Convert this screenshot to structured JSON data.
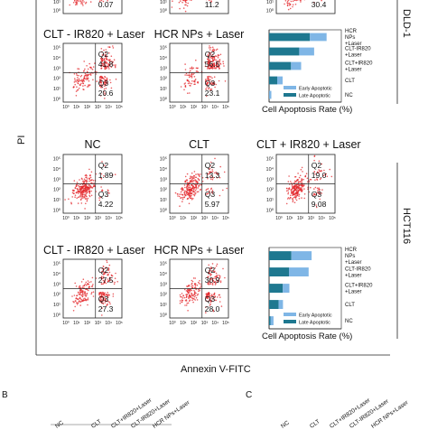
{
  "figure": {
    "y_axis_label": "PI",
    "x_axis_label": "Annexin V-FITC",
    "cell_lines": [
      "DLD-1",
      "HCT116"
    ],
    "panel_letters": [
      "B",
      "C"
    ],
    "bottom_groups": [
      "NC",
      "CLT",
      "CLT+IR820+Laser",
      "CLT-IR820+Laser",
      "HCR NPs+Laser"
    ],
    "colors": {
      "dots": "#e3262a",
      "early": "#7fb6e6",
      "late": "#1e7890",
      "grid": "#222222"
    }
  },
  "chart_data": [
    {
      "type": "scatter",
      "cell_line": "DLD-1",
      "panels": [
        {
          "title": "CLT - IR820 + Laser",
          "q2": "41.8",
          "q3": "20.6"
        },
        {
          "title": "HCR NPs + Laser",
          "q2": "56.5",
          "q3": "23.1"
        }
      ],
      "partial_values": [
        "0.07",
        "11.2",
        "30.4"
      ],
      "y_ticks": [
        "10⁵",
        "10⁴",
        "10³",
        "10²",
        "10¹",
        "10⁰"
      ],
      "x_ticks": [
        "10⁰",
        "10¹",
        "10²",
        "10³",
        "10⁴",
        "10⁵"
      ]
    },
    {
      "type": "scatter",
      "cell_line": "HCT116",
      "panels": [
        {
          "title": "NC",
          "q2": "1.89",
          "q3": "4.22"
        },
        {
          "title": "CLT",
          "q2": "13.3",
          "q3": "5.97"
        },
        {
          "title": "CLT + IR820 + Laser",
          "q2": "19.0",
          "q3": "9.08"
        },
        {
          "title": "CLT - IR820 + Laser",
          "q2": "27.5",
          "q3": "27.3"
        },
        {
          "title": "HCR NPs + Laser",
          "q2": "30.9",
          "q3": "28.0"
        }
      ],
      "y_ticks": [
        "10⁵",
        "10⁴",
        "10³",
        "10²",
        "10¹",
        "10⁰"
      ],
      "x_ticks": [
        "10⁰",
        "10¹",
        "10²",
        "10³",
        "10⁴",
        "10⁵"
      ]
    },
    {
      "type": "bar",
      "orientation": "horizontal",
      "stacked": true,
      "cell_line": "DLD-1",
      "categories": [
        "HCR NPs +Laser",
        "CLT-IR820 +Laser",
        "CLT+IR820 +Laser",
        "CLT",
        "NC"
      ],
      "series": [
        {
          "name": "Late Apoptotic",
          "values": [
            56.5,
            41.8,
            30.4,
            11.2,
            0.07
          ]
        },
        {
          "name": "Early Apoptotic",
          "values": [
            23.1,
            20.6,
            14.0,
            7.5,
            3.0
          ]
        }
      ],
      "xlabel": "Cell Apoptosis Rate (%)",
      "xlim": [
        0,
        100
      ],
      "legend": "bottom-right"
    },
    {
      "type": "bar",
      "orientation": "horizontal",
      "stacked": true,
      "cell_line": "HCT116",
      "categories": [
        "HCR NPs +Laser",
        "CLT-IR820 +Laser",
        "CLT+IR820 +Laser",
        "CLT",
        "NC"
      ],
      "series": [
        {
          "name": "Late Apoptotic",
          "values": [
            30.9,
            27.5,
            19.0,
            13.3,
            1.89
          ]
        },
        {
          "name": "Early Apoptotic",
          "values": [
            28.0,
            27.3,
            9.08,
            5.97,
            4.22
          ]
        }
      ],
      "xlabel": "Cell Apoptosis Rate (%)",
      "xlim": [
        0,
        100
      ],
      "legend": "bottom-right"
    }
  ]
}
